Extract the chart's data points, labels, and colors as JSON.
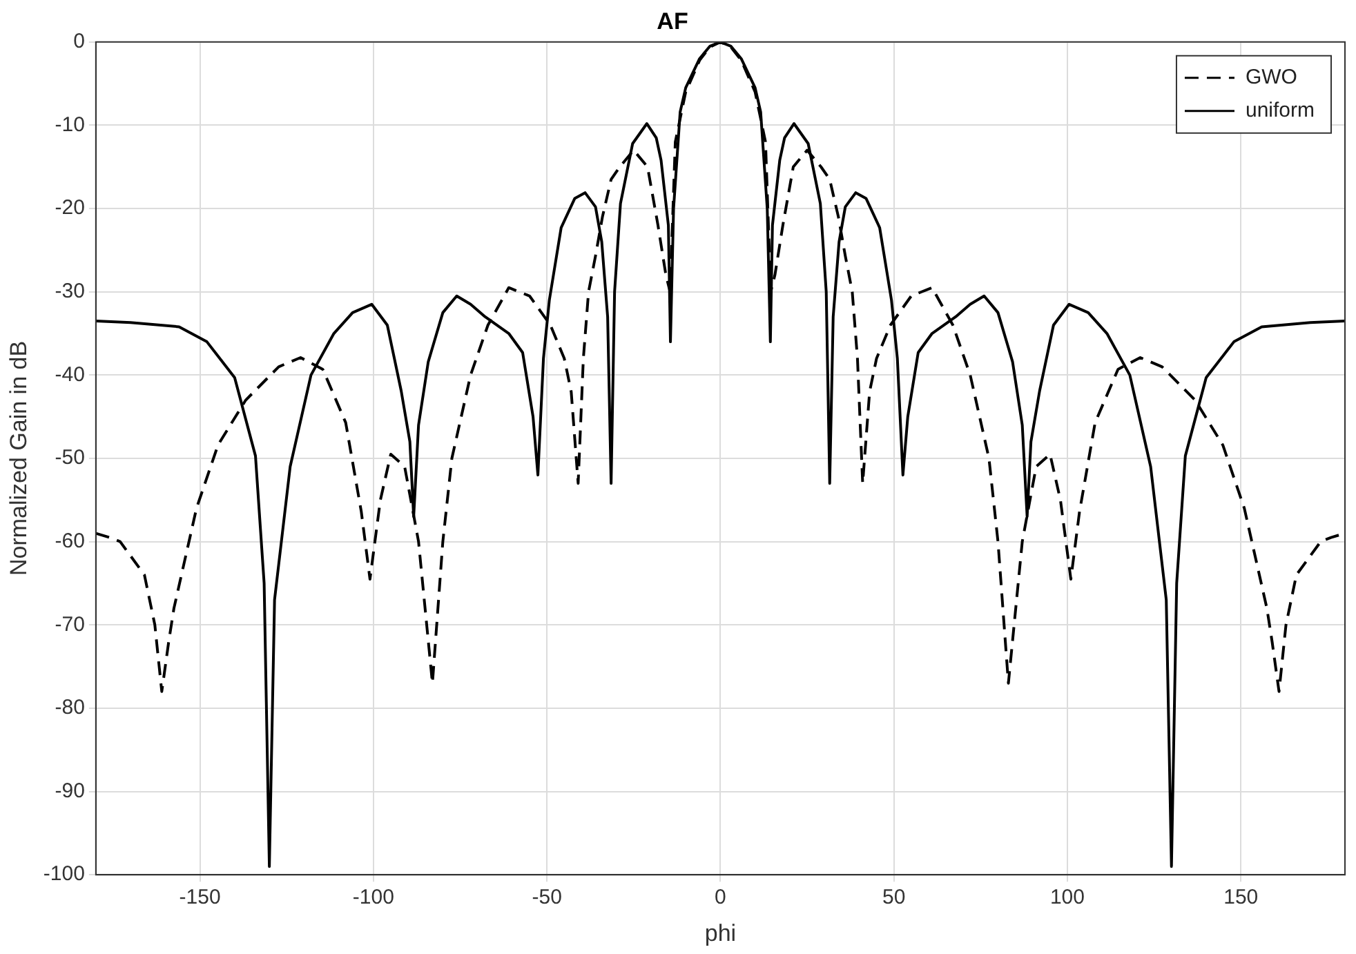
{
  "chart_data": {
    "type": "line",
    "title": "AF",
    "xlabel": "phi",
    "ylabel": "Normalized Gain in dB",
    "xlim": [
      -180,
      180
    ],
    "xticks": [
      -150,
      -100,
      -50,
      0,
      50,
      100,
      150
    ],
    "ylim": [
      -100,
      0
    ],
    "yticks": [
      -100,
      -90,
      -80,
      -70,
      -60,
      -50,
      -40,
      -30,
      -20,
      -10,
      0
    ],
    "grid": true,
    "legend": "top right",
    "marker": "none",
    "series": [
      {
        "name": "GWO",
        "color": "#000000",
        "line_style": "dashed",
        "x": [
          -180,
          -176,
          -173,
          -166,
          -163,
          -161,
          -159,
          -157.5,
          -151,
          -144.8,
          -136.8,
          -127.3,
          -121,
          -114.6,
          -108,
          -103.5,
          -101,
          -98,
          -95,
          -91,
          -87,
          -83,
          -80,
          -77.4,
          -72,
          -67,
          -61,
          -55,
          -49,
          -45,
          -43,
          -41,
          -39.5,
          -38,
          -36,
          -34,
          -31.5,
          -29,
          -25,
          -21,
          -18,
          -15.7,
          -14.5,
          -13,
          -10,
          -6,
          -3,
          0,
          3,
          6,
          10,
          13,
          14.5,
          15.7,
          18,
          21,
          25,
          29,
          31.5,
          34,
          36,
          38,
          39.5,
          41,
          43,
          45,
          49,
          55,
          61,
          67,
          72,
          77.4,
          80,
          83,
          87,
          91,
          95,
          98,
          101,
          103.5,
          108,
          114.6,
          121,
          127.3,
          136.8,
          144.8,
          151,
          157.5,
          159,
          161,
          163,
          166,
          173,
          176,
          180
        ],
        "values": [
          -59,
          -59.5,
          -60,
          -64,
          -70,
          -78,
          -72,
          -68,
          -56,
          -48.4,
          -43,
          -39,
          -37.9,
          -39.3,
          -45.7,
          -56.4,
          -64.5,
          -55,
          -49.5,
          -51,
          -60,
          -77,
          -60,
          -50,
          -40,
          -34,
          -29.5,
          -30.5,
          -34,
          -38,
          -42,
          -53,
          -38,
          -30,
          -25.7,
          -21,
          -16.5,
          -15,
          -13,
          -15,
          -22,
          -28,
          -30,
          -12,
          -6,
          -2.2,
          -0.6,
          0,
          -0.6,
          -2.2,
          -6,
          -12,
          -30,
          -28,
          -22,
          -15,
          -13,
          -15,
          -16.5,
          -21,
          -25.7,
          -30,
          -38,
          -53,
          -42,
          -38,
          -34,
          -30.5,
          -29.5,
          -34,
          -40,
          -50,
          -60,
          -77,
          -60,
          -51,
          -49.5,
          -55,
          -64.5,
          -56.4,
          -45.7,
          -39.3,
          -37.9,
          -39,
          -43,
          -48.4,
          -56,
          -68,
          -72,
          -78,
          -70,
          -64,
          -60,
          -59.5,
          -59
        ]
      },
      {
        "name": "uniform",
        "color": "#000000",
        "line_style": "solid",
        "x": [
          -180,
          -170,
          -156,
          -148,
          -140,
          -134,
          -131.5,
          -130,
          -128.5,
          -124,
          -118,
          -111.4,
          -106,
          -100.5,
          -96,
          -92,
          -89.5,
          -88.4,
          -87,
          -84.2,
          -80,
          -76,
          -72,
          -67.8,
          -61,
          -57,
          -54,
          -52.6,
          -51,
          -49.3,
          -45.9,
          -42,
          -39,
          -36,
          -34.2,
          -32.5,
          -31.5,
          -30.5,
          -28.8,
          -25.3,
          -21.2,
          -18.5,
          -17.1,
          -15,
          -14.4,
          -13.5,
          -11.6,
          -10,
          -6,
          -3,
          0,
          3,
          6,
          10,
          11.6,
          13.5,
          14.4,
          15,
          17.1,
          18.5,
          21.2,
          25.3,
          28.8,
          30.5,
          31.5,
          32.5,
          34.2,
          36,
          39,
          42,
          45.9,
          49.3,
          51,
          52.6,
          54,
          57,
          61,
          67.8,
          72,
          76,
          80,
          84.2,
          87,
          88.4,
          89.5,
          92,
          96,
          100.5,
          106,
          111.4,
          118,
          124,
          128.5,
          130,
          131.5,
          134,
          140,
          148,
          156,
          170,
          180
        ],
        "values": [
          -33.5,
          -33.7,
          -34.2,
          -36,
          -40.3,
          -49.7,
          -65,
          -99,
          -67,
          -51,
          -40,
          -35,
          -32.5,
          -31.5,
          -34,
          -41.9,
          -48,
          -57,
          -46,
          -38.4,
          -32.5,
          -30.5,
          -31.5,
          -33,
          -35,
          -37.3,
          -45,
          -52,
          -38,
          -31,
          -22.3,
          -18.8,
          -18.1,
          -19.8,
          -24,
          -33,
          -53,
          -30,
          -19.4,
          -12.2,
          -9.8,
          -11.5,
          -14.2,
          -22,
          -36,
          -20,
          -8.4,
          -5.5,
          -2,
          -0.5,
          0,
          -0.5,
          -2,
          -5.5,
          -8.4,
          -20,
          -36,
          -22,
          -14.2,
          -11.5,
          -9.8,
          -12.2,
          -19.4,
          -30,
          -53,
          -33,
          -24,
          -19.8,
          -18.1,
          -18.8,
          -22.3,
          -31,
          -38,
          -52,
          -45,
          -37.3,
          -35,
          -33,
          -31.5,
          -30.5,
          -32.5,
          -38.4,
          -46,
          -57,
          -48,
          -41.9,
          -34,
          -31.5,
          -32.5,
          -35,
          -40,
          -51,
          -67,
          -99,
          -65,
          -49.7,
          -40.3,
          -36,
          -34.2,
          -33.7,
          -33.5
        ]
      }
    ]
  }
}
